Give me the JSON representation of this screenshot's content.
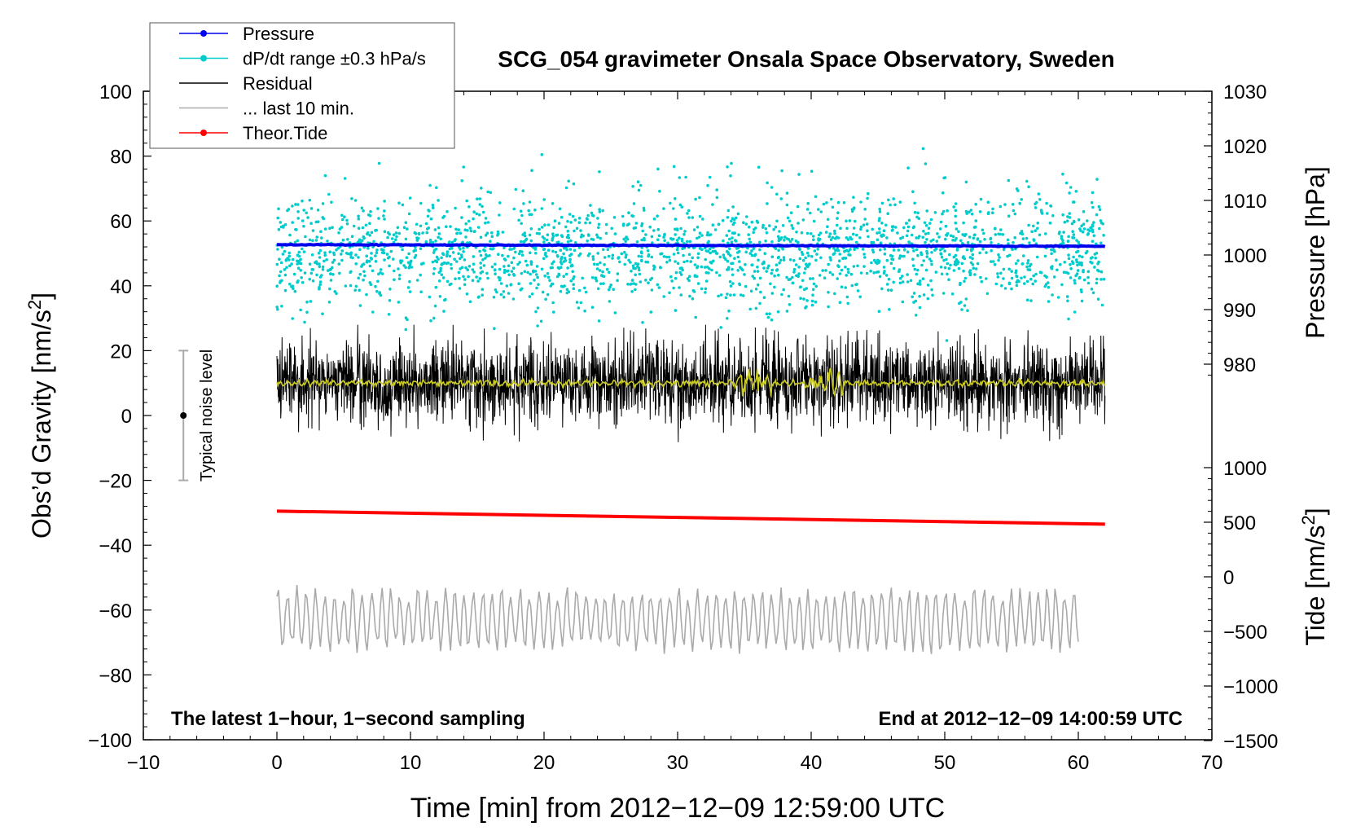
{
  "chart_data": {
    "type": "line",
    "title": "SCG_054 gravimeter Onsala Space Observatory, Sweden",
    "xlabel": "Time [min] from 2012−12−09 12:59:00 UTC",
    "ylabel_left": "Obs’d Gravity [nm/s",
    "ylabel_left_sup": "2",
    "ylabel_left_end": "]",
    "ylabel_pressure": "Pressure [hPa]",
    "ylabel_tide": "Tide [nm/s",
    "ylabel_tide_sup": "2",
    "ylabel_tide_end": "]",
    "xlim": [
      -10,
      70
    ],
    "ylim": [
      -100,
      100
    ],
    "pressure_axis": {
      "range_at_plot": [
        970,
        1030
      ],
      "ticks": [
        980,
        990,
        1000,
        1010,
        1020,
        1030
      ]
    },
    "tide_axis": {
      "ticks": [
        -1500,
        -1000,
        -500,
        0,
        500,
        1000
      ]
    },
    "x_ticks": [
      -10,
      0,
      10,
      20,
      30,
      40,
      50,
      60,
      70
    ],
    "y_ticks": [
      -100,
      -80,
      -60,
      -40,
      -20,
      0,
      20,
      40,
      60,
      80,
      100
    ],
    "tick_labels": {
      "x": [
        "−10",
        "0",
        "10",
        "20",
        "30",
        "40",
        "50",
        "60",
        "70"
      ],
      "y": [
        "−100",
        "−80",
        "−60",
        "−40",
        "−20",
        "0",
        "20",
        "40",
        "60",
        "80",
        "100"
      ],
      "pressure": [
        "980",
        "990",
        "1000",
        "1010",
        "1020",
        "1030"
      ],
      "tide": [
        "−1500",
        "−1000",
        "−500",
        "0",
        "500",
        "1000"
      ]
    },
    "legend": {
      "position": "top-left",
      "entries": [
        {
          "label": "Pressure",
          "color": "#0000ee",
          "marker": true
        },
        {
          "label": "dP/dt range ±0.3 hPa/s",
          "color": "#00cccc",
          "marker": true
        },
        {
          "label": "Residual",
          "color": "#000000",
          "marker": false
        },
        {
          "label": "... last 10 min.",
          "color": "#aaaaaa",
          "marker": false
        },
        {
          "label": "Theor.Tide",
          "color": "#ff0000",
          "marker": true
        }
      ]
    },
    "series": [
      {
        "name": "Pressure",
        "color": "#0000ee",
        "x_range": [
          0,
          62
        ],
        "pressure_hPa": [
          1001.9,
          1001.6
        ]
      },
      {
        "name": "dP/dt range",
        "color": "#00cccc",
        "x_range": [
          0,
          62
        ],
        "center_nm_s2": 50,
        "spread": 15
      },
      {
        "name": "Residual",
        "color": "#000000",
        "x_range": [
          0,
          62
        ],
        "center_nm_s2": 10,
        "amplitude": 9
      },
      {
        "name": "Residual smoothed",
        "color": "#cccc22",
        "x_range": [
          0,
          62
        ],
        "center_nm_s2": 10
      },
      {
        "name": "Theor.Tide",
        "color": "#ff0000",
        "x": [
          0,
          62
        ],
        "y_nm_s2": [
          -29.5,
          -33.5
        ]
      },
      {
        "name": "... last 10 min.",
        "color": "#aaaaaa",
        "x_range": [
          0,
          60
        ],
        "center_nm_s2": -63,
        "amplitude": 10
      }
    ],
    "noise_bar": {
      "label": "Typical noise level",
      "x": -7,
      "y": 0,
      "range": [
        -20,
        20
      ]
    },
    "annotations": {
      "bottom_left": "The latest 1−hour, 1−second sampling",
      "bottom_right": "End at 2012−12−09 14:00:59 UTC"
    }
  }
}
